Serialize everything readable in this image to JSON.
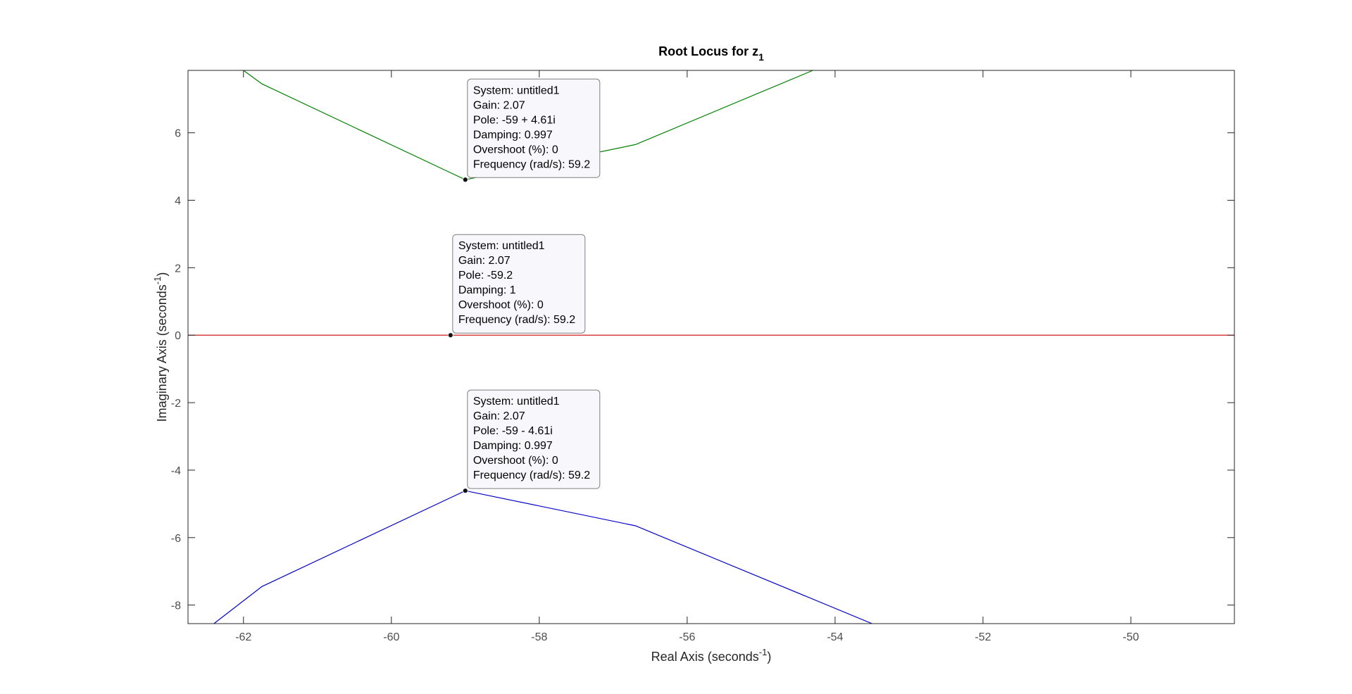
{
  "chart_data": {
    "type": "line",
    "title_main": "Root Locus for z",
    "title_sub": "1",
    "xlabel_main": "Real Axis (seconds",
    "xlabel_sup": "-1",
    "xlabel_end": ")",
    "ylabel_main": "Imaginary Axis (seconds",
    "ylabel_sup": "-1",
    "ylabel_end": ")",
    "xlim": [
      -62.75,
      -48.6
    ],
    "ylim": [
      -8.55,
      7.85
    ],
    "xticks": [
      -62,
      -60,
      -58,
      -56,
      -54,
      -52,
      -50
    ],
    "xtick_labels": [
      "-62",
      "-60",
      "-58",
      "-56",
      "-54",
      "-52",
      "-50"
    ],
    "yticks": [
      -8,
      -6,
      -4,
      -2,
      0,
      2,
      4,
      6
    ],
    "ytick_labels": [
      "-8",
      "-6",
      "-4",
      "-2",
      "0",
      "2",
      "4",
      "6"
    ],
    "grid": false,
    "series": [
      {
        "color": "#008000",
        "x": [
          -62.55,
          -62.0,
          -61.75,
          -59.0,
          -56.7,
          -54.3
        ],
        "y": [
          8.2,
          7.85,
          7.45,
          4.61,
          5.65,
          7.85
        ]
      },
      {
        "color": "#cc0000",
        "x": [
          -62.75,
          -48.6
        ],
        "y": [
          0,
          0
        ]
      },
      {
        "color": "#0000cc",
        "x": [
          -62.4,
          -61.75,
          -59.0,
          -56.7,
          -53.5
        ],
        "y": [
          -8.55,
          -7.45,
          -4.61,
          -5.65,
          -8.55
        ]
      }
    ],
    "datatips": [
      {
        "point": [
          -59.0,
          4.61
        ],
        "lines": [
          "System: untitled1",
          "Gain: 2.07",
          "Pole: -59 + 4.61i",
          "Damping: 0.997",
          "Overshoot (%): 0",
          "Frequency (rad/s): 59.2"
        ]
      },
      {
        "point": [
          -59.2,
          0
        ],
        "lines": [
          "System: untitled1",
          "Gain: 2.07",
          "Pole: -59.2",
          "Damping: 1",
          "Overshoot (%): 0",
          "Frequency (rad/s): 59.2"
        ]
      },
      {
        "point": [
          -59.0,
          -4.61
        ],
        "lines": [
          "System: untitled1",
          "Gain: 2.07",
          "Pole: -59 - 4.61i",
          "Damping: 0.997",
          "Overshoot (%): 0",
          "Frequency (rad/s): 59.2"
        ]
      }
    ]
  }
}
